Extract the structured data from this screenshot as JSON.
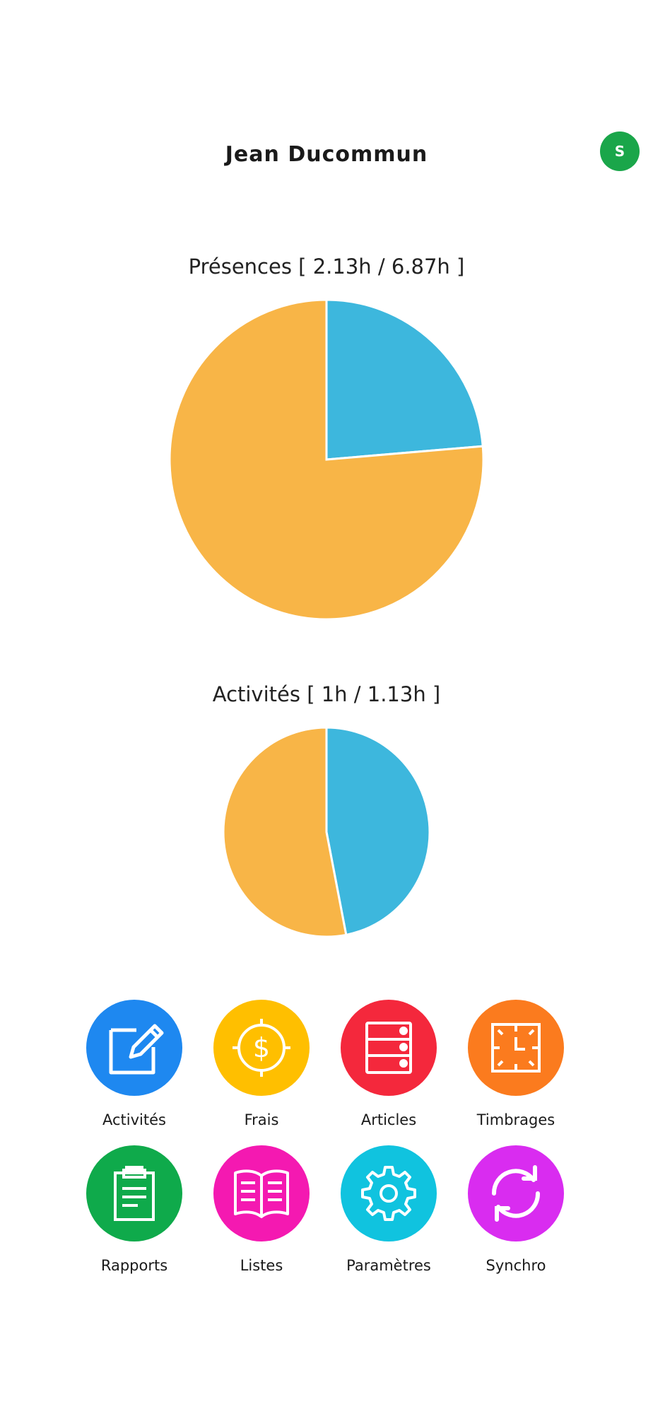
{
  "header": {
    "user_name": "Jean Ducommun",
    "sync_badge": "S",
    "sync_badge_color": "#1aa64a"
  },
  "charts": {
    "presences": {
      "title": "Présences [ 2.13h / 6.87h ]"
    },
    "activites": {
      "title": "Activités [ 1h / 1.13h ]"
    }
  },
  "chart_data": [
    {
      "type": "pie",
      "title": "Présences [ 2.13h / 6.87h ]",
      "slices": [
        {
          "value": 2.13,
          "color": "#3db7dd"
        },
        {
          "value": 6.87,
          "color": "#f8b547"
        }
      ]
    },
    {
      "type": "pie",
      "title": "Activités [ 1h / 1.13h ]",
      "slices": [
        {
          "value": 1.0,
          "color": "#3db7dd"
        },
        {
          "value": 1.13,
          "color": "#f8b547"
        }
      ]
    }
  ],
  "menu": {
    "items": [
      {
        "label": "Activités",
        "icon": "edit-icon",
        "color": "#1e88f0"
      },
      {
        "label": "Frais",
        "icon": "dollar-coin-icon",
        "color": "#ffbf00"
      },
      {
        "label": "Articles",
        "icon": "server-list-icon",
        "color": "#f4283c"
      },
      {
        "label": "Timbrages",
        "icon": "clock-icon",
        "color": "#fb7b1e"
      },
      {
        "label": "Rapports",
        "icon": "clipboard-icon",
        "color": "#0faa4b"
      },
      {
        "label": "Listes",
        "icon": "book-icon",
        "color": "#f419b1"
      },
      {
        "label": "Paramètres",
        "icon": "gear-icon",
        "color": "#10c3df"
      },
      {
        "label": "Synchro",
        "icon": "sync-icon",
        "color": "#d92cf0"
      }
    ]
  }
}
